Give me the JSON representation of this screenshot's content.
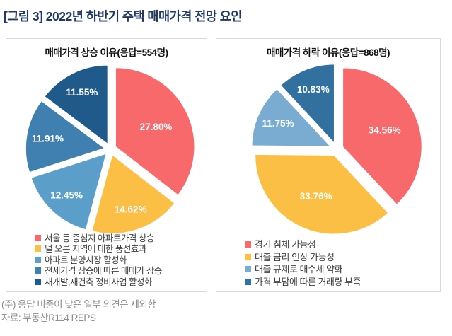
{
  "page": {
    "title": "[그림 3] 2022년 하반기 주택 매매가격 전망 요인",
    "title_color": "#1F3864",
    "footnote": "(주) 응답 비중이 낮은 일부 의견은 제외함",
    "source": "자료: 부동산R114 REPS",
    "panel_border_color": "#D9D9D9"
  },
  "chart_data": [
    {
      "type": "pie",
      "title": "매매가격 상승 이유(응답=554명)",
      "respondents_label": "응답=554명",
      "respondents": 554,
      "unit": "%",
      "legend_position": "bottom",
      "start_angle": "top",
      "direction": "clockwise",
      "slices": [
        {
          "label": "서울 등 중심지 아파트가격 상승",
          "value": 27.8,
          "display": "27.80%",
          "color": "#F8696B"
        },
        {
          "label": "덜 오른 지역에 대한 풍선효과",
          "value": 14.62,
          "display": "14.62%",
          "color": "#FBBF45"
        },
        {
          "label": "아파트 분양시장 활성화",
          "value": 12.45,
          "display": "12.45%",
          "color": "#5B9EC9"
        },
        {
          "label": "전세가격 상승에 따른 매매가 상승",
          "value": 11.91,
          "display": "11.91%",
          "color": "#4080B0"
        },
        {
          "label": "재개발,재건축 정비사업 활성화",
          "value": 11.55,
          "display": "11.55%",
          "color": "#1F5A8A"
        }
      ]
    },
    {
      "type": "pie",
      "title": "매매가격 하락 이유(응답=868명)",
      "respondents_label": "응답=868명",
      "respondents": 868,
      "unit": "%",
      "legend_position": "bottom",
      "start_angle": "top",
      "direction": "clockwise",
      "slices": [
        {
          "label": "경기 침체 가능성",
          "value": 34.56,
          "display": "34.56%",
          "color": "#F8696B"
        },
        {
          "label": "대출 금리 인상 가능성",
          "value": 33.76,
          "display": "33.76%",
          "color": "#FBBF45"
        },
        {
          "label": "대출 규제로 매수세 약화",
          "value": 11.75,
          "display": "11.75%",
          "color": "#7AACD1"
        },
        {
          "label": "가격 부담에 따른 거래량 부족",
          "value": 10.83,
          "display": "10.83%",
          "color": "#32709F"
        }
      ]
    }
  ]
}
